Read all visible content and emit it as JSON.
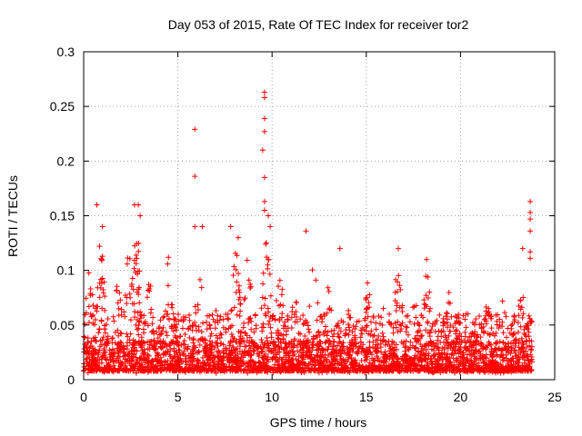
{
  "chart_data": {
    "type": "scatter",
    "title": "Day 053 of 2015, Rate Of TEC Index for receiver tor2",
    "xlabel": "GPS time / hours",
    "ylabel": "ROTI / TECUs",
    "xlim": [
      0,
      25
    ],
    "ylim": [
      0,
      0.3
    ],
    "x_ticks": [
      "0",
      "5",
      "10",
      "15",
      "20",
      "25"
    ],
    "y_ticks": [
      "0",
      "0.05",
      "0.1",
      "0.15",
      "0.2",
      "0.25",
      "0.3"
    ],
    "grid": true,
    "legend": "none",
    "marker": "plus",
    "marker_color": "#ff0000",
    "dense_band": {
      "x_range": [
        0,
        23.8
      ],
      "y_range": [
        0.008,
        0.06
      ]
    },
    "notable_points": [
      {
        "x": 0.7,
        "y": 0.16
      },
      {
        "x": 1.0,
        "y": 0.14
      },
      {
        "x": 2.7,
        "y": 0.16
      },
      {
        "x": 2.9,
        "y": 0.16
      },
      {
        "x": 3.0,
        "y": 0.15
      },
      {
        "x": 4.5,
        "y": 0.112
      },
      {
        "x": 5.9,
        "y": 0.229
      },
      {
        "x": 5.9,
        "y": 0.186
      },
      {
        "x": 5.9,
        "y": 0.14
      },
      {
        "x": 6.3,
        "y": 0.14
      },
      {
        "x": 7.8,
        "y": 0.14
      },
      {
        "x": 8.2,
        "y": 0.13
      },
      {
        "x": 9.6,
        "y": 0.263
      },
      {
        "x": 9.6,
        "y": 0.258
      },
      {
        "x": 9.6,
        "y": 0.239
      },
      {
        "x": 9.6,
        "y": 0.227
      },
      {
        "x": 9.5,
        "y": 0.21
      },
      {
        "x": 9.6,
        "y": 0.185
      },
      {
        "x": 9.6,
        "y": 0.163
      },
      {
        "x": 9.6,
        "y": 0.155
      },
      {
        "x": 9.8,
        "y": 0.15
      },
      {
        "x": 9.9,
        "y": 0.14
      },
      {
        "x": 11.8,
        "y": 0.136
      },
      {
        "x": 13.6,
        "y": 0.12
      },
      {
        "x": 16.7,
        "y": 0.12
      },
      {
        "x": 18.2,
        "y": 0.11
      },
      {
        "x": 23.3,
        "y": 0.12
      },
      {
        "x": 23.7,
        "y": 0.163
      },
      {
        "x": 23.7,
        "y": 0.153
      },
      {
        "x": 23.7,
        "y": 0.147
      },
      {
        "x": 23.7,
        "y": 0.136
      },
      {
        "x": 23.7,
        "y": 0.117
      },
      {
        "x": 23.7,
        "y": 0.111
      }
    ],
    "activity_peaks": [
      {
        "x": 0.3,
        "y": 0.1
      },
      {
        "x": 0.9,
        "y": 0.13
      },
      {
        "x": 1.8,
        "y": 0.09
      },
      {
        "x": 2.4,
        "y": 0.12
      },
      {
        "x": 2.8,
        "y": 0.14
      },
      {
        "x": 3.5,
        "y": 0.09
      },
      {
        "x": 4.5,
        "y": 0.11
      },
      {
        "x": 5.5,
        "y": 0.065
      },
      {
        "x": 6.1,
        "y": 0.11
      },
      {
        "x": 7.0,
        "y": 0.08
      },
      {
        "x": 8.1,
        "y": 0.12
      },
      {
        "x": 8.7,
        "y": 0.11
      },
      {
        "x": 9.7,
        "y": 0.13
      },
      {
        "x": 10.4,
        "y": 0.1
      },
      {
        "x": 11.2,
        "y": 0.08
      },
      {
        "x": 12.2,
        "y": 0.11
      },
      {
        "x": 13.0,
        "y": 0.09
      },
      {
        "x": 14.1,
        "y": 0.08
      },
      {
        "x": 15.1,
        "y": 0.1
      },
      {
        "x": 15.9,
        "y": 0.08
      },
      {
        "x": 16.7,
        "y": 0.11
      },
      {
        "x": 17.6,
        "y": 0.08
      },
      {
        "x": 18.2,
        "y": 0.1
      },
      {
        "x": 19.4,
        "y": 0.08
      },
      {
        "x": 20.3,
        "y": 0.07
      },
      {
        "x": 21.4,
        "y": 0.07
      },
      {
        "x": 22.3,
        "y": 0.08
      },
      {
        "x": 23.2,
        "y": 0.09
      }
    ]
  }
}
